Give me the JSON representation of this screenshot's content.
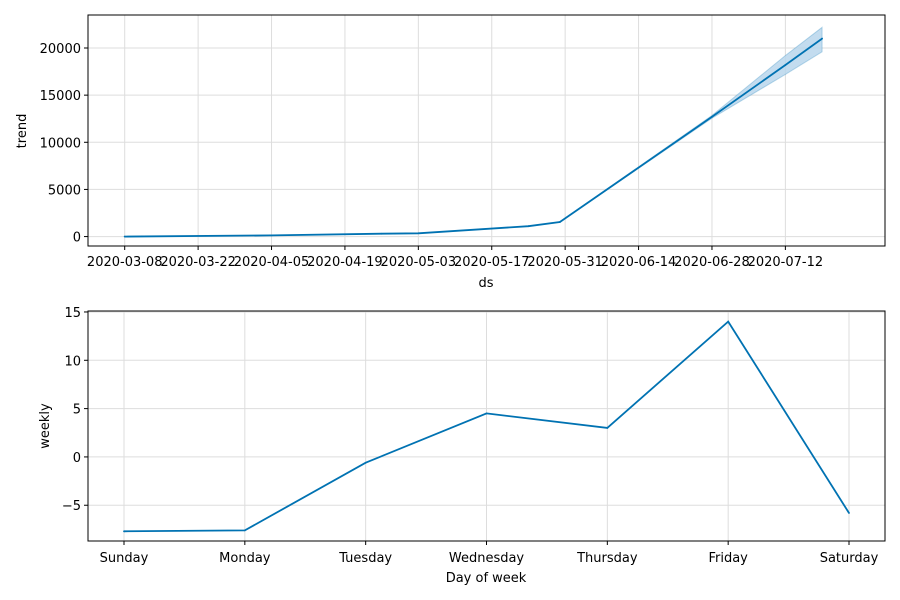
{
  "chart_data": [
    {
      "type": "area",
      "xlabel": "ds",
      "ylabel": "trend",
      "grid": true,
      "color": "#0072B2",
      "band_color": "#b9d6ec",
      "x_ticks": [
        "2020-03-08",
        "2020-03-22",
        "2020-04-05",
        "2020-04-19",
        "2020-05-03",
        "2020-05-17",
        "2020-05-31",
        "2020-06-14",
        "2020-06-28",
        "2020-07-12"
      ],
      "y_ticks": [
        0,
        5000,
        10000,
        15000,
        20000
      ],
      "xlim": [
        "2020-03-01",
        "2020-07-31"
      ],
      "ylim": [
        -1000,
        23500
      ],
      "series": [
        {
          "x": [
            "2020-03-08",
            "2020-04-05",
            "2020-04-26",
            "2020-05-03",
            "2020-05-24",
            "2020-05-30",
            "2020-06-28",
            "2020-07-12",
            "2020-07-19"
          ],
          "y": [
            0,
            120,
            300,
            350,
            1100,
            1550,
            12700,
            18200,
            21000
          ],
          "lower": [
            0,
            120,
            300,
            350,
            1100,
            1550,
            12550,
            17200,
            19600
          ],
          "upper": [
            0,
            120,
            300,
            350,
            1100,
            1550,
            12850,
            19200,
            22200
          ]
        }
      ]
    },
    {
      "type": "line",
      "xlabel": "Day of week",
      "ylabel": "weekly",
      "grid": true,
      "color": "#0072B2",
      "categories": [
        "Sunday",
        "Monday",
        "Tuesday",
        "Wednesday",
        "Thursday",
        "Friday",
        "Saturday"
      ],
      "y_ticks": [
        -5,
        0,
        5,
        10,
        15
      ],
      "y_tick_labels": [
        "−5",
        "0",
        "5",
        "10",
        "15"
      ],
      "ylim": [
        -8.7,
        15.1
      ],
      "series": [
        {
          "values": [
            -7.7,
            -7.6,
            -0.6,
            4.5,
            3.0,
            14.0,
            -5.8
          ]
        }
      ]
    }
  ]
}
